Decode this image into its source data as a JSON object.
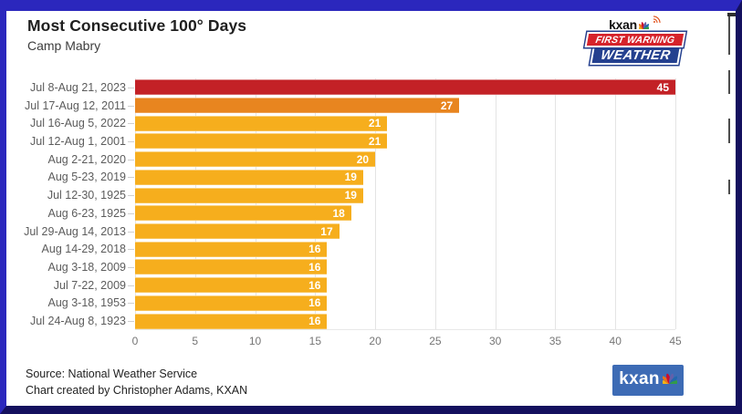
{
  "header": {
    "title": "Most Consecutive 100° Days",
    "subtitle": "Camp Mabry"
  },
  "fw_logo": {
    "station": "kxan",
    "line1": "FIRST WARNING",
    "line2": "WEATHER",
    "icons": [
      "peacock-icon",
      "signal-icon"
    ]
  },
  "chart_data": {
    "type": "bar",
    "orientation": "horizontal",
    "title": "Most Consecutive 100° Days",
    "subtitle": "Camp Mabry",
    "categories": [
      "Jul 8-Aug 21, 2023",
      "Jul 17-Aug 12, 2011",
      "Jul 16-Aug 5, 2022",
      "Jul 12-Aug 1, 2001",
      "Aug 2-21, 2020",
      "Aug 5-23, 2019",
      "Jul 12-30, 1925",
      "Aug 6-23, 1925",
      "Jul 29-Aug 14, 2013",
      "Aug 14-29, 2018",
      "Aug 3-18, 2009",
      "Jul 7-22, 2009",
      "Aug 3-18, 1953",
      "Jul 24-Aug 8, 1923"
    ],
    "values": [
      45,
      27,
      21,
      21,
      20,
      19,
      19,
      18,
      17,
      16,
      16,
      16,
      16,
      16
    ],
    "bar_colors": [
      "#C32126",
      "#E8851F",
      "#F6AE1D",
      "#F6AE1D",
      "#F6AE1D",
      "#F6AE1D",
      "#F6AE1D",
      "#F6AE1D",
      "#F6AE1D",
      "#F6AE1D",
      "#F6AE1D",
      "#F6AE1D",
      "#F6AE1D",
      "#F6AE1D"
    ],
    "xticks": [
      0,
      5,
      10,
      15,
      20,
      25,
      30,
      35,
      40,
      45
    ],
    "xlim": [
      0,
      45
    ],
    "grid": true,
    "value_labels": "inside-end",
    "legend": "none"
  },
  "footer": {
    "source": "Source: National Weather Service",
    "credit": "Chart created by Christopher Adams, KXAN",
    "logo_text": "kxan"
  },
  "colors": {
    "frame_light": "#2B27BD",
    "frame_dark": "#14105E",
    "bar_red": "#C32126",
    "bar_orange": "#E8851F",
    "bar_amber": "#F6AE1D",
    "gridline": "#E4E4E4",
    "axis_text": "#757575",
    "category_text": "#5C5C5C",
    "banner_red": "#D6232B",
    "banner_blue": "#24408F",
    "kxan_box_blue": "#3D6BB5"
  }
}
